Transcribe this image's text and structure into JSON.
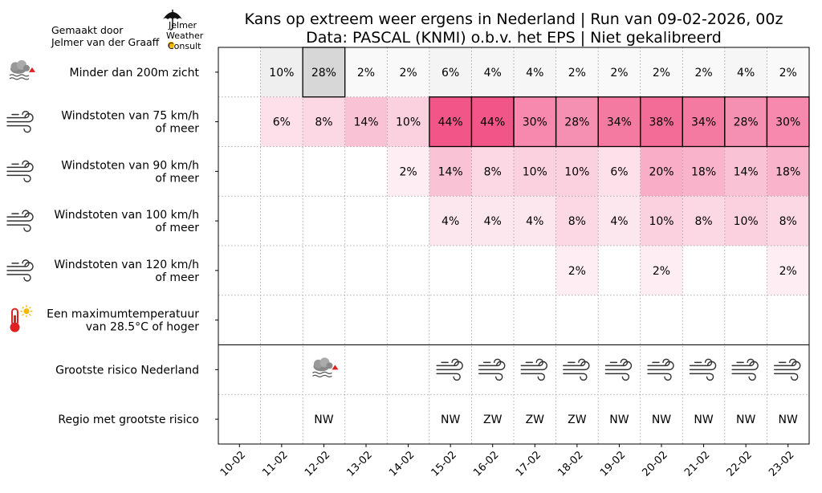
{
  "header": {
    "title_line1": "Kans op extreem weer ergens in Nederland | Run van 09-02-2026, 00z",
    "title_line2": "Data: PASCAL (KNMI) o.b.v. het EPS | Niet gekalibreerd"
  },
  "credit": {
    "line1": "Gemaakt door",
    "line2": "Jelmer van der Graaff"
  },
  "logo": {
    "line1": "Jelmer",
    "line2": "Weather",
    "line3": "Consult",
    "icon": "umbrella-icon"
  },
  "colors": {
    "grid": "#999999",
    "fog_fill": "#bbbbbb",
    "wind_fill": "#f0407a",
    "heat_fill": "#e8292f"
  },
  "chart_data": {
    "type": "heatmap",
    "title": "Kans op extreem weer ergens in Nederland | Run van 09-02-2026, 00z",
    "subtitle": "Data: PASCAL (KNMI) o.b.v. het EPS | Niet gekalibreerd",
    "x": [
      "10-02",
      "11-02",
      "12-02",
      "13-02",
      "14-02",
      "15-02",
      "16-02",
      "17-02",
      "18-02",
      "19-02",
      "20-02",
      "21-02",
      "22-02",
      "23-02"
    ],
    "rows": [
      {
        "label_lines": [
          "Minder dan 200m zicht"
        ],
        "icon": "fog-icon",
        "kind": "fog",
        "values": [
          null,
          10,
          28,
          2,
          2,
          6,
          4,
          4,
          2,
          2,
          2,
          2,
          4,
          2
        ],
        "highlight": [
          false,
          false,
          true,
          false,
          false,
          false,
          false,
          false,
          false,
          false,
          false,
          false,
          false,
          false
        ]
      },
      {
        "label_lines": [
          "Windstoten van 75 km/h",
          "of meer"
        ],
        "icon": "wind-icon",
        "kind": "wind",
        "values": [
          null,
          6,
          8,
          14,
          10,
          44,
          44,
          30,
          28,
          34,
          38,
          34,
          28,
          30
        ],
        "highlight": [
          false,
          false,
          false,
          false,
          false,
          true,
          true,
          true,
          true,
          true,
          true,
          true,
          true,
          true
        ]
      },
      {
        "label_lines": [
          "Windstoten van 90 km/h",
          "of meer"
        ],
        "icon": "wind-icon",
        "kind": "wind",
        "values": [
          null,
          null,
          null,
          null,
          2,
          14,
          8,
          10,
          10,
          6,
          20,
          18,
          14,
          18
        ],
        "highlight": [
          false,
          false,
          false,
          false,
          false,
          false,
          false,
          false,
          false,
          false,
          false,
          false,
          false,
          false
        ]
      },
      {
        "label_lines": [
          "Windstoten van 100 km/h",
          "of meer"
        ],
        "icon": "wind-icon",
        "kind": "wind",
        "values": [
          null,
          null,
          null,
          null,
          null,
          4,
          4,
          4,
          8,
          4,
          10,
          8,
          10,
          8
        ],
        "highlight": [
          false,
          false,
          false,
          false,
          false,
          false,
          false,
          false,
          false,
          false,
          false,
          false,
          false,
          false
        ]
      },
      {
        "label_lines": [
          "Windstoten van 120 km/h",
          "of meer"
        ],
        "icon": "wind-icon",
        "kind": "wind",
        "values": [
          null,
          null,
          null,
          null,
          null,
          null,
          null,
          null,
          2,
          null,
          2,
          null,
          null,
          2
        ],
        "highlight": [
          false,
          false,
          false,
          false,
          false,
          false,
          false,
          false,
          false,
          false,
          false,
          false,
          false,
          false
        ]
      },
      {
        "label_lines": [
          "Een maximumtemperatuur",
          "van 28.5°C of hoger"
        ],
        "icon": "thermometer-sun-icon",
        "kind": "heat",
        "values": [
          null,
          null,
          null,
          null,
          null,
          null,
          null,
          null,
          null,
          null,
          null,
          null,
          null,
          null
        ],
        "highlight": [
          false,
          false,
          false,
          false,
          false,
          false,
          false,
          false,
          false,
          false,
          false,
          false,
          false,
          false
        ]
      }
    ],
    "summary_rows": [
      {
        "label": "Grootste risico Nederland",
        "kind": "icons",
        "values": [
          "",
          "",
          "fog-icon",
          "",
          "",
          "wind-icon",
          "wind-icon",
          "wind-icon",
          "wind-icon",
          "wind-icon",
          "wind-icon",
          "wind-icon",
          "wind-icon",
          "wind-icon"
        ]
      },
      {
        "label": "Regio met grootste risico",
        "kind": "text",
        "values": [
          "",
          "",
          "NW",
          "",
          "",
          "NW",
          "ZW",
          "ZW",
          "ZW",
          "NW",
          "NW",
          "NW",
          "NW",
          "NW"
        ]
      }
    ],
    "value_suffix": "%"
  }
}
